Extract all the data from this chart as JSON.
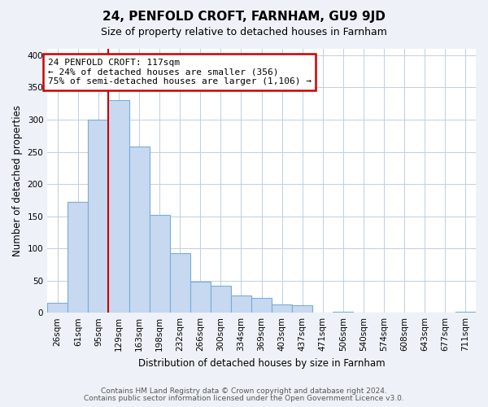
{
  "title": "24, PENFOLD CROFT, FARNHAM, GU9 9JD",
  "subtitle": "Size of property relative to detached houses in Farnham",
  "xlabel": "Distribution of detached houses by size in Farnham",
  "ylabel": "Number of detached properties",
  "bar_labels": [
    "26sqm",
    "61sqm",
    "95sqm",
    "129sqm",
    "163sqm",
    "198sqm",
    "232sqm",
    "266sqm",
    "300sqm",
    "334sqm",
    "369sqm",
    "403sqm",
    "437sqm",
    "471sqm",
    "506sqm",
    "540sqm",
    "574sqm",
    "608sqm",
    "643sqm",
    "677sqm",
    "711sqm"
  ],
  "bar_values": [
    15,
    172,
    300,
    330,
    258,
    152,
    93,
    48,
    42,
    27,
    23,
    13,
    11,
    0,
    2,
    0,
    0,
    0,
    0,
    0,
    2
  ],
  "bar_color": "#c6d9f0",
  "bar_edge_color": "#7aabdb",
  "annotation_title": "24 PENFOLD CROFT: 117sqm",
  "annotation_line1": "← 24% of detached houses are smaller (356)",
  "annotation_line2": "75% of semi-detached houses are larger (1,106) →",
  "annotation_box_color": "#ffffff",
  "annotation_box_edge_color": "#cc0000",
  "vline_color": "#cc0000",
  "ylim": [
    0,
    410
  ],
  "yticks": [
    0,
    50,
    100,
    150,
    200,
    250,
    300,
    350,
    400
  ],
  "footer_line1": "Contains HM Land Registry data © Crown copyright and database right 2024.",
  "footer_line2": "Contains public sector information licensed under the Open Government Licence v3.0.",
  "background_color": "#eef2f8",
  "plot_background_color": "#ffffff",
  "grid_color": "#c0cfe0"
}
